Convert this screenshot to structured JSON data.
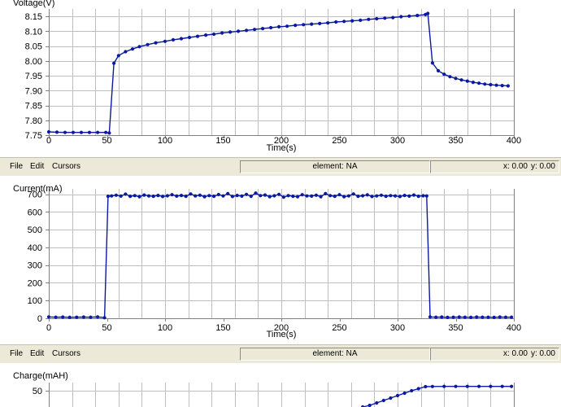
{
  "window": {
    "background": "#ffffff",
    "toolbar_bg": "#ece9d8",
    "series_color": "#0a1aa0"
  },
  "charts": [
    {
      "id": "voltage",
      "title": "Voltage(V)",
      "xlabel": "Time(s)",
      "xticks": [
        "0",
        "50",
        "100",
        "150",
        "200",
        "250",
        "300",
        "350",
        "400"
      ],
      "yticks": [
        "7.75",
        "7.80",
        "7.85",
        "7.90",
        "7.95",
        "8.00",
        "8.05",
        "8.10",
        "8.15"
      ]
    },
    {
      "id": "current",
      "title": "Current(mA)",
      "xlabel": "Time(s)",
      "xticks": [
        "0",
        "50",
        "100",
        "150",
        "200",
        "250",
        "300",
        "350",
        "400"
      ],
      "yticks": [
        "0",
        "100",
        "200",
        "300",
        "400",
        "500",
        "600",
        "700"
      ]
    },
    {
      "id": "charge",
      "title": "Charge(mAH)",
      "xlabel": "",
      "xticks": [],
      "yticks": [
        "50"
      ]
    }
  ],
  "toolbars": [
    {
      "menu": [
        "File",
        "Edit",
        "Cursors"
      ],
      "element_status": "element: NA",
      "x_readout": "x: 0.00",
      "y_readout": "y: 0.00"
    },
    {
      "menu": [
        "File",
        "Edit",
        "Cursors"
      ],
      "element_status": "element: NA",
      "x_readout": "x: 0.00",
      "y_readout": "y: 0.00"
    }
  ],
  "chart_data": [
    {
      "type": "line",
      "title": "",
      "xlabel": "Time(s)",
      "ylabel": "Voltage(V)",
      "xlim": [
        0,
        400
      ],
      "ylim": [
        7.75,
        8.175
      ],
      "grid": true,
      "series": [
        {
          "x": [
            0,
            7,
            14,
            21,
            28,
            35,
            42,
            49,
            52,
            56,
            60,
            66,
            72,
            78,
            85,
            92,
            100,
            107,
            114,
            121,
            128,
            135,
            142,
            149,
            156,
            163,
            170,
            177,
            184,
            191,
            198,
            205,
            212,
            219,
            226,
            233,
            240,
            247,
            254,
            261,
            268,
            275,
            282,
            289,
            296,
            303,
            310,
            317,
            324,
            326,
            330,
            335,
            340,
            345,
            350,
            355,
            360,
            365,
            370,
            375,
            380,
            385,
            390,
            395
          ],
          "y": [
            7.761,
            7.76,
            7.759,
            7.759,
            7.759,
            7.759,
            7.759,
            7.759,
            7.757,
            7.992,
            8.018,
            8.031,
            8.04,
            8.048,
            8.055,
            8.061,
            8.066,
            8.071,
            8.075,
            8.079,
            8.083,
            8.087,
            8.09,
            8.094,
            8.097,
            8.1,
            8.103,
            8.106,
            8.109,
            8.112,
            8.115,
            8.117,
            8.12,
            8.122,
            8.124,
            8.126,
            8.128,
            8.131,
            8.133,
            8.135,
            8.137,
            8.14,
            8.142,
            8.144,
            8.146,
            8.149,
            8.151,
            8.153,
            8.156,
            8.16,
            7.993,
            7.967,
            7.955,
            7.947,
            7.941,
            7.936,
            7.932,
            7.928,
            7.925,
            7.922,
            7.92,
            7.918,
            7.917,
            7.916
          ]
        }
      ]
    },
    {
      "type": "line",
      "title": "",
      "xlabel": "Time(s)",
      "ylabel": "Current(mA)",
      "xlim": [
        0,
        400
      ],
      "ylim": [
        0,
        730
      ],
      "grid": true,
      "series": [
        {
          "x": [
            0,
            6,
            12,
            18,
            24,
            30,
            36,
            42,
            48,
            51,
            54,
            58,
            62,
            66,
            70,
            74,
            78,
            82,
            86,
            90,
            94,
            98,
            102,
            106,
            110,
            114,
            118,
            122,
            126,
            130,
            134,
            138,
            142,
            146,
            150,
            154,
            158,
            162,
            166,
            170,
            174,
            178,
            182,
            186,
            190,
            194,
            198,
            202,
            206,
            210,
            214,
            218,
            222,
            226,
            230,
            234,
            238,
            242,
            246,
            250,
            254,
            258,
            262,
            266,
            270,
            274,
            278,
            282,
            286,
            290,
            294,
            298,
            302,
            306,
            310,
            314,
            318,
            322,
            325,
            328,
            333,
            338,
            343,
            348,
            353,
            358,
            363,
            368,
            373,
            378,
            383,
            388,
            393,
            398
          ],
          "y": [
            8,
            6,
            7,
            5,
            6,
            7,
            6,
            8,
            3,
            688,
            690,
            694,
            689,
            700,
            688,
            692,
            686,
            695,
            690,
            688,
            693,
            687,
            691,
            697,
            689,
            693,
            688,
            701,
            690,
            694,
            686,
            692,
            688,
            698,
            690,
            703,
            687,
            693,
            689,
            699,
            688,
            706,
            692,
            695,
            686,
            691,
            699,
            683,
            692,
            688,
            686,
            697,
            690,
            689,
            694,
            686,
            703,
            692,
            688,
            697,
            686,
            690,
            701,
            688,
            691,
            696,
            687,
            690,
            694,
            688,
            692,
            690,
            687,
            693,
            689,
            695,
            688,
            691,
            690,
            8,
            6,
            7,
            5,
            6,
            7,
            6,
            5,
            7,
            6,
            6,
            5,
            7,
            6,
            6
          ]
        }
      ]
    },
    {
      "type": "line",
      "title": "",
      "xlabel": "",
      "ylabel": "Charge(mAH)",
      "xlim": [
        0,
        400
      ],
      "ylim": [
        30,
        60
      ],
      "grid": true,
      "series": [
        {
          "x": [
            270,
            276,
            282,
            288,
            294,
            300,
            306,
            312,
            318,
            324,
            330,
            340,
            350,
            360,
            370,
            380,
            390,
            398
          ],
          "y": [
            30,
            32,
            35,
            38,
            41,
            44,
            47,
            50,
            52.5,
            55,
            55.2,
            55.3,
            55.3,
            55.3,
            55.3,
            55.3,
            55.3,
            55.3
          ]
        }
      ]
    }
  ]
}
